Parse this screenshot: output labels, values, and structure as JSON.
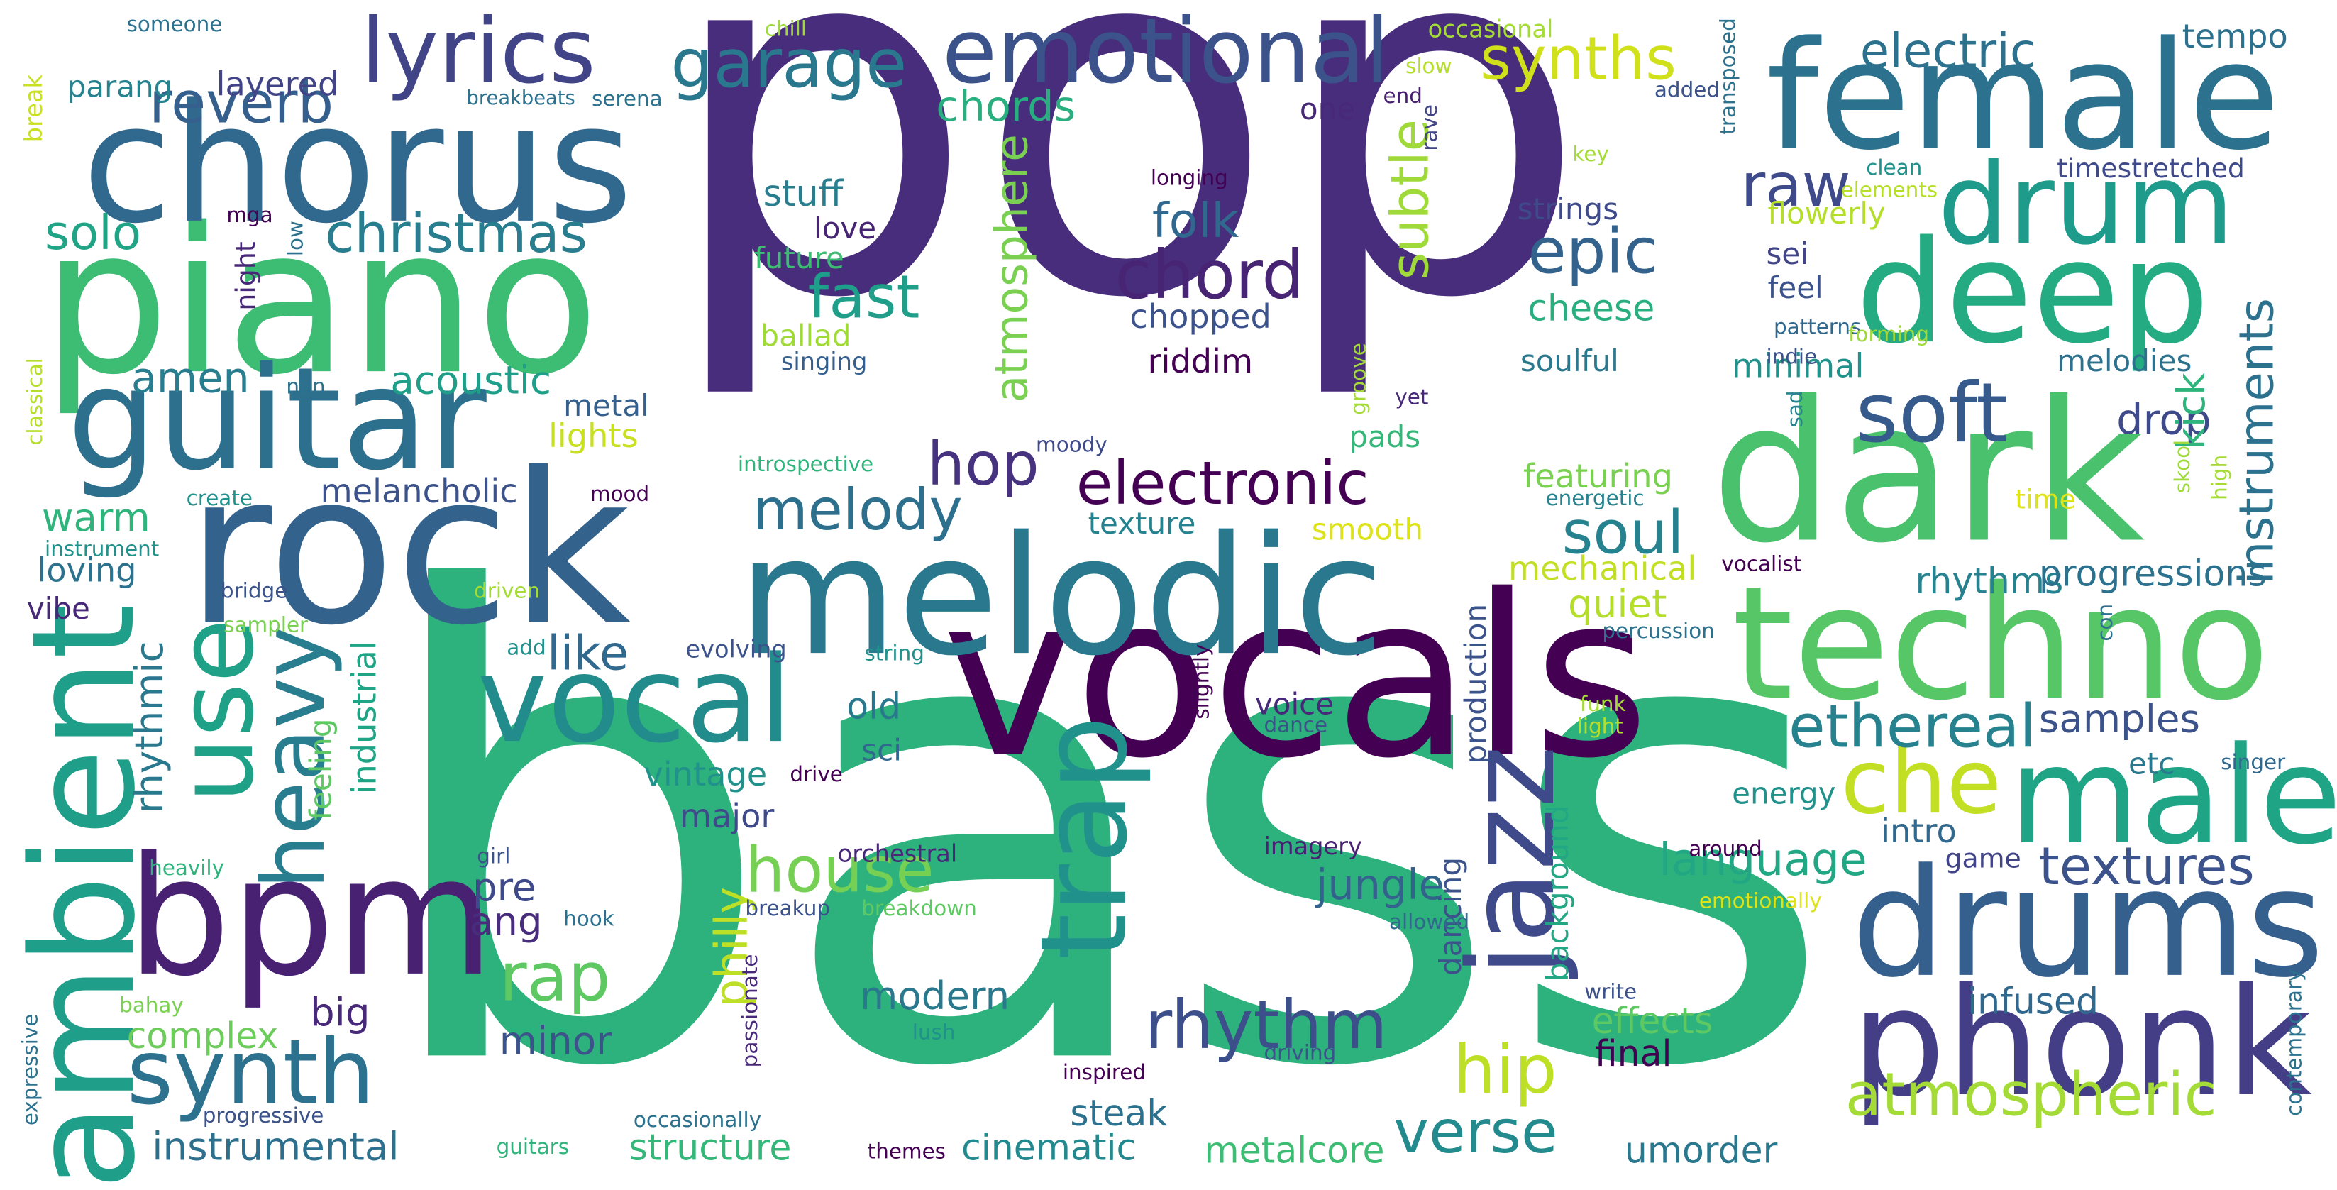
{
  "words": [
    {
      "text": "pop",
      "color": "#472d7b"
    },
    {
      "text": "bass",
      "color": "#2db27d"
    },
    {
      "text": "vocals",
      "color": "#440154"
    },
    {
      "text": "piano",
      "color": "#3dbc74"
    },
    {
      "text": "rock",
      "color": "#33638d"
    },
    {
      "text": "melodic",
      "color": "#2a788e"
    },
    {
      "text": "chorus",
      "color": "#31688e"
    },
    {
      "text": "female",
      "color": "#2c728e"
    },
    {
      "text": "dark",
      "color": "#4ac16d"
    },
    {
      "text": "techno",
      "color": "#56c667"
    },
    {
      "text": "guitar",
      "color": "#2d708e"
    },
    {
      "text": "deep",
      "color": "#25ab82"
    },
    {
      "text": "drums",
      "color": "#355f8d"
    },
    {
      "text": "phonk",
      "color": "#433e85"
    },
    {
      "text": "male",
      "color": "#20a486"
    },
    {
      "text": "bpm",
      "color": "#482173"
    },
    {
      "text": "ambient",
      "color": "#1f9e89"
    },
    {
      "text": "vocal",
      "color": "#228c8d"
    },
    {
      "text": "emotional",
      "color": "#3b528b"
    },
    {
      "text": "lyrics",
      "color": "#414487"
    },
    {
      "text": "use",
      "color": "#1fa187"
    },
    {
      "text": "trap",
      "color": "#21918c"
    },
    {
      "text": "jazz",
      "color": "#3e4a89"
    },
    {
      "text": "synth",
      "color": "#2c728e"
    },
    {
      "text": "drum",
      "color": "#1e9b8a"
    },
    {
      "text": "heavy",
      "color": "#287d8e"
    },
    {
      "text": "soft",
      "color": "#375a8c"
    },
    {
      "text": "che",
      "color": "#c2df23"
    },
    {
      "text": "rhythm",
      "color": "#3c4f8a"
    },
    {
      "text": "electronic",
      "color": "#440154"
    },
    {
      "text": "garage",
      "color": "#2a788e"
    },
    {
      "text": "chord",
      "color": "#482475"
    },
    {
      "text": "epic",
      "color": "#33638d"
    },
    {
      "text": "house",
      "color": "#75d054"
    },
    {
      "text": "rap",
      "color": "#5ec962"
    },
    {
      "text": "hip",
      "color": "#bddf26"
    },
    {
      "text": "verse",
      "color": "#238a8d"
    },
    {
      "text": "atmospheric",
      "color": "#a5db36"
    },
    {
      "text": "ethereal",
      "color": "#26828e"
    },
    {
      "text": "textures",
      "color": "#3b528b"
    },
    {
      "text": "melody",
      "color": "#2d708e"
    },
    {
      "text": "hop",
      "color": "#46327e"
    },
    {
      "text": "soul",
      "color": "#26828e"
    },
    {
      "text": "synths",
      "color": "#d0e11c"
    },
    {
      "text": "electric",
      "color": "#2c728e"
    },
    {
      "text": "reverb",
      "color": "#355f8d"
    },
    {
      "text": "christmas",
      "color": "#287d8e"
    },
    {
      "text": "fast",
      "color": "#1f9e89"
    },
    {
      "text": "folk",
      "color": "#31688e"
    },
    {
      "text": "raw",
      "color": "#3e4a89"
    },
    {
      "text": "solo",
      "color": "#20a486"
    },
    {
      "text": "chords",
      "color": "#29af7f"
    },
    {
      "text": "subtle",
      "color": "#9fda3a"
    },
    {
      "text": "atmosphere",
      "color": "#7ad151"
    },
    {
      "text": "instruments",
      "color": "#2c728e"
    },
    {
      "text": "philly",
      "color": "#bddf26"
    },
    {
      "text": "like",
      "color": "#31688e"
    },
    {
      "text": "amen",
      "color": "#287d8e"
    },
    {
      "text": "acoustic",
      "color": "#1f9e89"
    },
    {
      "text": "warm",
      "color": "#2fb47c"
    },
    {
      "text": "rhythmic",
      "color": "#2a788e"
    },
    {
      "text": "language",
      "color": "#22a785"
    },
    {
      "text": "jungle",
      "color": "#33638d"
    },
    {
      "text": "instrumental",
      "color": "#2d708e"
    },
    {
      "text": "structure",
      "color": "#35b779"
    },
    {
      "text": "cinematic",
      "color": "#23898e"
    },
    {
      "text": "umorder",
      "color": "#2a788e"
    },
    {
      "text": "metalcore",
      "color": "#3dbc74"
    },
    {
      "text": "ang",
      "color": "#472d7b"
    },
    {
      "text": "pre",
      "color": "#3e4a89"
    },
    {
      "text": "modern",
      "color": "#2a788e"
    },
    {
      "text": "minor",
      "color": "#3b528b"
    },
    {
      "text": "big",
      "color": "#482878"
    },
    {
      "text": "complex",
      "color": "#6ccd5a"
    },
    {
      "text": "effects",
      "color": "#5ec962"
    },
    {
      "text": "final",
      "color": "#440154"
    },
    {
      "text": "infused",
      "color": "#31688e"
    },
    {
      "text": "steak",
      "color": "#2c728e"
    },
    {
      "text": "cheese",
      "color": "#29af7f"
    },
    {
      "text": "soulful",
      "color": "#2a788e"
    },
    {
      "text": "chopped",
      "color": "#3b528b"
    },
    {
      "text": "riddim",
      "color": "#440154"
    },
    {
      "text": "minimal",
      "color": "#21918c"
    },
    {
      "text": "featuring",
      "color": "#7ad151"
    },
    {
      "text": "mechanical",
      "color": "#c2df23"
    },
    {
      "text": "quiet",
      "color": "#b5de2b"
    },
    {
      "text": "rhythms",
      "color": "#26828e"
    },
    {
      "text": "progressions",
      "color": "#2c728e"
    },
    {
      "text": "samples",
      "color": "#3b528b"
    },
    {
      "text": "drop",
      "color": "#3e4a89"
    },
    {
      "text": "kick",
      "color": "#2fb47c"
    },
    {
      "text": "melodies",
      "color": "#2c728e"
    },
    {
      "text": "metal",
      "color": "#355f8d"
    },
    {
      "text": "lights",
      "color": "#c8e020"
    },
    {
      "text": "melancholic",
      "color": "#3b528b"
    },
    {
      "text": "texture",
      "color": "#26828e"
    },
    {
      "text": "smooth",
      "color": "#dde318"
    },
    {
      "text": "pads",
      "color": "#35b779"
    },
    {
      "text": "vintage",
      "color": "#21918c"
    },
    {
      "text": "major",
      "color": "#3e4a89"
    },
    {
      "text": "old",
      "color": "#2a788e"
    },
    {
      "text": "sci",
      "color": "#31688e"
    },
    {
      "text": "voice",
      "color": "#482878"
    },
    {
      "text": "energy",
      "color": "#21918c"
    },
    {
      "text": "etc",
      "color": "#2a788e"
    },
    {
      "text": "intro",
      "color": "#31688e"
    },
    {
      "text": "game",
      "color": "#414487"
    },
    {
      "text": "stuff",
      "color": "#287d8e"
    },
    {
      "text": "love",
      "color": "#482475"
    },
    {
      "text": "future",
      "color": "#3dbc74"
    },
    {
      "text": "ballad",
      "color": "#a0da39"
    },
    {
      "text": "singing",
      "color": "#355f8d"
    },
    {
      "text": "feel",
      "color": "#3b528b"
    },
    {
      "text": "sei",
      "color": "#414487"
    },
    {
      "text": "strings",
      "color": "#3e4a89"
    },
    {
      "text": "flowerly",
      "color": "#b5de2b"
    },
    {
      "text": "one",
      "color": "#482878"
    },
    {
      "text": "tempo",
      "color": "#2c728e"
    },
    {
      "text": "timestretched",
      "color": "#3e4a89"
    },
    {
      "text": "layered",
      "color": "#414487"
    },
    {
      "text": "parang",
      "color": "#26828e"
    },
    {
      "text": "loving",
      "color": "#2c728e"
    },
    {
      "text": "vibe",
      "color": "#482878"
    },
    {
      "text": "feeling",
      "color": "#5ec962"
    },
    {
      "text": "industrial",
      "color": "#20a486"
    },
    {
      "text": "production",
      "color": "#3b528b"
    },
    {
      "text": "background",
      "color": "#22a785"
    },
    {
      "text": "dancing",
      "color": "#3b528b"
    },
    {
      "text": "orchestral",
      "color": "#482878"
    },
    {
      "text": "imagery",
      "color": "#482173"
    },
    {
      "text": "someone",
      "color": "#2c728e"
    },
    {
      "text": "chill",
      "color": "#9fda3a"
    },
    {
      "text": "occasional",
      "color": "#a5db36"
    },
    {
      "text": "slow",
      "color": "#b5de2b"
    },
    {
      "text": "end",
      "color": "#481f70"
    },
    {
      "text": "added",
      "color": "#3b528b"
    },
    {
      "text": "transposed",
      "color": "#2c728e"
    },
    {
      "text": "rave",
      "color": "#414487"
    },
    {
      "text": "breakbeats",
      "color": "#2c728e"
    },
    {
      "text": "serena",
      "color": "#2c728e"
    },
    {
      "text": "break",
      "color": "#c8e020"
    },
    {
      "text": "key",
      "color": "#a5db36"
    },
    {
      "text": "clean",
      "color": "#21918c"
    },
    {
      "text": "elements",
      "color": "#b5de2b"
    },
    {
      "text": "longing",
      "color": "#440154"
    },
    {
      "text": "mga",
      "color": "#440154"
    },
    {
      "text": "low",
      "color": "#2c728e"
    },
    {
      "text": "night",
      "color": "#482878"
    },
    {
      "text": "patterns",
      "color": "#31688e"
    },
    {
      "text": "indie",
      "color": "#3b528b"
    },
    {
      "text": "forming",
      "color": "#9fda3a"
    },
    {
      "text": "sad",
      "color": "#26828e"
    },
    {
      "text": "groove",
      "color": "#a5db36"
    },
    {
      "text": "yet",
      "color": "#482878"
    },
    {
      "text": "non",
      "color": "#2c728e"
    },
    {
      "text": "classical",
      "color": "#b5de2b"
    },
    {
      "text": "moody",
      "color": "#3e4a89"
    },
    {
      "text": "introspective",
      "color": "#2fb47c"
    },
    {
      "text": "create",
      "color": "#21918c"
    },
    {
      "text": "mood",
      "color": "#440154"
    },
    {
      "text": "energetic",
      "color": "#26828e"
    },
    {
      "text": "time",
      "color": "#dde318"
    },
    {
      "text": "skool",
      "color": "#9fda3a"
    },
    {
      "text": "high",
      "color": "#a5db36"
    },
    {
      "text": "instrument",
      "color": "#21918c"
    },
    {
      "text": "vocalist",
      "color": "#440154"
    },
    {
      "text": "bridge",
      "color": "#3b528b"
    },
    {
      "text": "driven",
      "color": "#a5db36"
    },
    {
      "text": "sampler",
      "color": "#7ad151"
    },
    {
      "text": "add",
      "color": "#21918c"
    },
    {
      "text": "evolving",
      "color": "#3b528b"
    },
    {
      "text": "string",
      "color": "#21918c"
    },
    {
      "text": "slightly",
      "color": "#440154"
    },
    {
      "text": "percussion",
      "color": "#2c728e"
    },
    {
      "text": "con",
      "color": "#2c728e"
    },
    {
      "text": "funk",
      "color": "#a5db36"
    },
    {
      "text": "light",
      "color": "#b5de2b"
    },
    {
      "text": "dance",
      "color": "#3b528b"
    },
    {
      "text": "drive",
      "color": "#440154"
    },
    {
      "text": "singer",
      "color": "#31688e"
    },
    {
      "text": "heavily",
      "color": "#2fb47c"
    },
    {
      "text": "girl",
      "color": "#3b528b"
    },
    {
      "text": "hook",
      "color": "#2c728e"
    },
    {
      "text": "breakup",
      "color": "#3b528b"
    },
    {
      "text": "breakdown",
      "color": "#5ec962"
    },
    {
      "text": "allowed",
      "color": "#31688e"
    },
    {
      "text": "around",
      "color": "#440154"
    },
    {
      "text": "emotionally",
      "color": "#dde318"
    },
    {
      "text": "bahay",
      "color": "#7ad151"
    },
    {
      "text": "expressive",
      "color": "#2c728e"
    },
    {
      "text": "passionate",
      "color": "#482878"
    },
    {
      "text": "lush",
      "color": "#21918c"
    },
    {
      "text": "write",
      "color": "#3b528b"
    },
    {
      "text": "driving",
      "color": "#3b528b"
    },
    {
      "text": "inspired",
      "color": "#440154"
    },
    {
      "text": "progressive",
      "color": "#3b528b"
    },
    {
      "text": "occasionally",
      "color": "#2c728e"
    },
    {
      "text": "guitars",
      "color": "#2fb47c"
    },
    {
      "text": "themes",
      "color": "#440154"
    },
    {
      "text": "contemporary",
      "color": "#2c728e"
    }
  ]
}
